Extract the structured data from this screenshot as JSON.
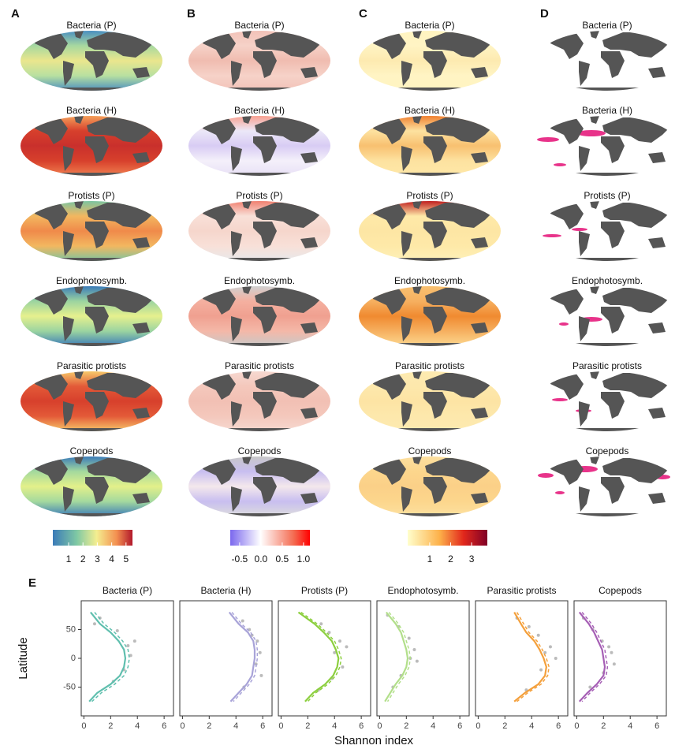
{
  "panel_labels": [
    "A",
    "B",
    "C",
    "D",
    "E"
  ],
  "map_titles": [
    "Bacteria (P)",
    "Bacteria (H)",
    "Protists (P)",
    "Endophotosymb.",
    "Parasitic protists",
    "Copepods"
  ],
  "colorbars": [
    {
      "lim": [
        -0.1,
        5.45
      ],
      "ticks": [
        1,
        2,
        3,
        4,
        5
      ]
    },
    {
      "lim": [
        -0.72,
        1.15
      ],
      "ticks": [
        -0.5,
        {
          "value": 0,
          "label": "0.0"
        },
        0.5,
        {
          "value": 1,
          "label": "1.0"
        }
      ]
    },
    {
      "lim": [
        -0.05,
        3.75
      ],
      "ticks": [
        1,
        2,
        3
      ]
    }
  ],
  "ylabel": "Latitude",
  "xlabel": "Shannon index",
  "chart_data": [
    {
      "type": "line",
      "title": "Bacteria (P)",
      "y": [
        80,
        60,
        45,
        30,
        15,
        0,
        -15,
        -30,
        -45,
        -60,
        -75
      ],
      "series": [
        {
          "color": "#5fbfae",
          "values": [
            0.5,
            1.2,
            2.0,
            2.6,
            3.0,
            3.1,
            3.0,
            2.7,
            2.0,
            1.0,
            0.4
          ]
        },
        {
          "color": "#5fbfae",
          "dash": true,
          "values": [
            0.8,
            1.5,
            2.3,
            2.9,
            3.3,
            3.4,
            3.3,
            3.0,
            2.3,
            1.3,
            0.6
          ]
        }
      ],
      "points": {
        "color": "#bbbbbb",
        "x": [
          1.2,
          2.5,
          3.3,
          3.5,
          3.0,
          2.2,
          3.8,
          0.8
        ],
        "y": [
          70,
          48,
          22,
          5,
          -20,
          -40,
          30,
          60
        ]
      },
      "xlim": [
        -0.2,
        6.7
      ],
      "ylim": [
        -100,
        100
      ],
      "xticks": [
        0,
        2,
        4,
        6
      ],
      "yticks": [
        50,
        0,
        -50
      ]
    },
    {
      "type": "line",
      "title": "Bacteria (H)",
      "y": [
        80,
        60,
        45,
        30,
        15,
        0,
        -15,
        -30,
        -45,
        -60,
        -75
      ],
      "series": [
        {
          "color": "#a8a3d8",
          "values": [
            3.5,
            4.2,
            4.9,
            5.3,
            5.4,
            5.4,
            5.3,
            5.2,
            4.8,
            4.2,
            3.6
          ]
        },
        {
          "color": "#a8a3d8",
          "dash": true,
          "values": [
            3.7,
            4.4,
            5.1,
            5.5,
            5.6,
            5.6,
            5.5,
            5.4,
            5.0,
            4.4,
            3.8
          ]
        }
      ],
      "points": {
        "color": "#bbbbbb",
        "x": [
          4.5,
          5.0,
          5.6,
          5.8,
          5.5,
          5.9,
          4.6,
          5.2
        ],
        "y": [
          65,
          50,
          30,
          10,
          -10,
          -30,
          -50,
          40
        ]
      },
      "xlim": [
        -0.2,
        6.7
      ],
      "ylim": [
        -100,
        100
      ],
      "xticks": [
        0,
        2,
        4,
        6
      ]
    },
    {
      "type": "line",
      "title": "Protists (P)",
      "y": [
        80,
        60,
        45,
        30,
        15,
        0,
        -15,
        -30,
        -45,
        -60,
        -75
      ],
      "series": [
        {
          "color": "#8ccf3e",
          "values": [
            1.3,
            2.5,
            3.2,
            3.8,
            4.1,
            4.3,
            4.2,
            3.9,
            3.3,
            2.4,
            1.8
          ]
        },
        {
          "color": "#8ccf3e",
          "dash": true,
          "values": [
            1.5,
            2.7,
            3.4,
            4.0,
            4.3,
            4.5,
            4.4,
            4.1,
            3.5,
            2.6,
            2.0
          ]
        }
      ],
      "points": {
        "color": "#bbbbbb",
        "x": [
          3.0,
          3.6,
          4.4,
          4.0,
          4.6,
          3.8,
          2.8,
          4.9
        ],
        "y": [
          60,
          45,
          30,
          10,
          -15,
          -35,
          -55,
          20
        ]
      },
      "xlim": [
        -0.2,
        6.7
      ],
      "ylim": [
        -100,
        100
      ],
      "xticks": [
        0,
        2,
        4,
        6
      ]
    },
    {
      "type": "line",
      "title": "Endophotosymb.",
      "y": [
        80,
        60,
        45,
        30,
        15,
        0,
        -15,
        -30,
        -45,
        -60,
        -75
      ],
      "series": [
        {
          "color": "#b2df8a",
          "values": [
            0.5,
            1.2,
            1.6,
            1.8,
            2.0,
            2.1,
            2.0,
            1.7,
            1.2,
            0.8,
            0.4
          ]
        },
        {
          "color": "#b2df8a",
          "dash": true,
          "values": [
            0.7,
            1.4,
            1.8,
            2.0,
            2.2,
            2.3,
            2.2,
            1.9,
            1.4,
            1.0,
            0.6
          ]
        }
      ],
      "points": {
        "color": "#bbbbbb",
        "x": [
          0.6,
          1.4,
          2.2,
          2.6,
          2.8,
          1.6,
          1.0,
          2.3
        ],
        "y": [
          75,
          55,
          35,
          15,
          -5,
          -30,
          -50,
          0
        ]
      },
      "xlim": [
        -0.2,
        6.7
      ],
      "ylim": [
        -100,
        100
      ],
      "xticks": [
        0,
        2,
        4,
        6
      ]
    },
    {
      "type": "line",
      "title": "Parasitic protists",
      "y": [
        80,
        60,
        45,
        30,
        15,
        0,
        -15,
        -30,
        -45,
        -60,
        -75
      ],
      "series": [
        {
          "color": "#f4a03c",
          "values": [
            2.7,
            3.2,
            3.6,
            4.2,
            4.6,
            4.9,
            5.1,
            5.0,
            4.5,
            3.5,
            2.7
          ]
        },
        {
          "color": "#f4a03c",
          "dash": true,
          "values": [
            2.9,
            3.4,
            3.8,
            4.4,
            4.8,
            5.1,
            5.3,
            5.2,
            4.7,
            3.7,
            2.9
          ]
        }
      ],
      "points": {
        "color": "#bbbbbb",
        "x": [
          2.9,
          3.8,
          4.5,
          5.4,
          5.8,
          4.7,
          3.6,
          5.0
        ],
        "y": [
          70,
          55,
          40,
          20,
          0,
          -20,
          -55,
          10
        ]
      },
      "xlim": [
        -0.2,
        6.7
      ],
      "ylim": [
        -100,
        100
      ],
      "xticks": [
        0,
        2,
        4,
        6
      ]
    },
    {
      "type": "line",
      "title": "Copepods",
      "y": [
        80,
        60,
        45,
        30,
        15,
        0,
        -15,
        -30,
        -45,
        -60,
        -75
      ],
      "series": [
        {
          "color": "#a65fb5",
          "values": [
            0.2,
            0.9,
            1.3,
            1.6,
            1.9,
            2.0,
            2.1,
            2.0,
            1.5,
            0.8,
            0.2
          ]
        },
        {
          "color": "#a65fb5",
          "dash": true,
          "values": [
            0.4,
            1.1,
            1.5,
            1.8,
            2.1,
            2.2,
            2.3,
            2.2,
            1.7,
            1.0,
            0.4
          ]
        }
      ],
      "points": {
        "color": "#bbbbbb",
        "x": [
          0.5,
          1.2,
          1.9,
          2.4,
          2.8,
          2.0,
          1.0,
          2.6
        ],
        "y": [
          70,
          50,
          30,
          20,
          -10,
          -25,
          -50,
          10
        ]
      },
      "xlim": [
        -0.2,
        6.7
      ],
      "ylim": [
        -100,
        100
      ],
      "xticks": [
        0,
        2,
        4,
        6
      ]
    }
  ]
}
